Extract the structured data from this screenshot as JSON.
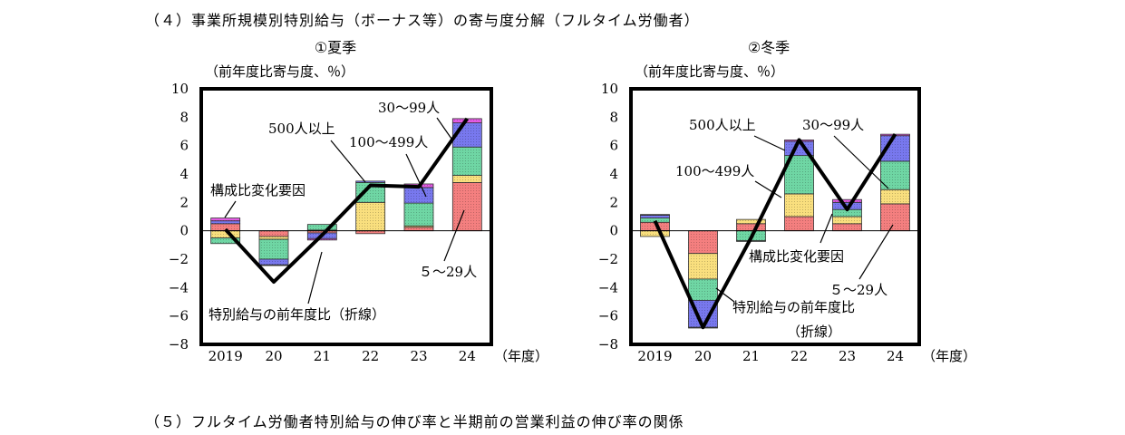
{
  "headings": {
    "section4": "（４）事業所規模別特別給与（ボーナス等）の寄与度分解（フルタイム労働者）",
    "section5": "（５）フルタイム労働者特別給与の伸び率と半期前の営業利益の伸び率の関係"
  },
  "colors": {
    "s5_29": "#f47f7f",
    "s30_99": "#f9df7e",
    "s100_499": "#6fd6a4",
    "s500": "#7878ee",
    "composition": "#e35be3",
    "line": "#000000"
  },
  "chart_data": [
    {
      "type": "bar",
      "stacked": true,
      "title": "①夏季",
      "ylabel": "（前年度比寄与度、％）",
      "xlabel": "（年度）",
      "ylim": [
        -8,
        10
      ],
      "yticks": [
        "−8",
        "−6",
        "−4",
        "−2",
        "0",
        "2",
        "4",
        "6",
        "8",
        "10"
      ],
      "categories": [
        "2019",
        "20",
        "21",
        "22",
        "23",
        "24"
      ],
      "series": [
        {
          "name": "５～29人",
          "key": "s5_29",
          "values": [
            0.5,
            -0.4,
            -0.15,
            -0.2,
            0.25,
            3.4
          ]
        },
        {
          "name": "30～99人",
          "key": "s30_99",
          "values": [
            -0.5,
            -0.2,
            0.05,
            2.0,
            0.1,
            0.5
          ]
        },
        {
          "name": "100～499人",
          "key": "s100_499",
          "values": [
            -0.4,
            -1.4,
            0.4,
            1.4,
            1.6,
            2.0
          ]
        },
        {
          "name": "500人以上",
          "key": "s500",
          "values": [
            0.2,
            -0.4,
            -0.4,
            0.1,
            1.1,
            1.7
          ]
        },
        {
          "name": "構成比変化要因",
          "key": "composition",
          "values": [
            0.2,
            -0.05,
            -0.1,
            0.0,
            0.25,
            0.3
          ]
        }
      ],
      "line": {
        "name": "特別給与の前年度比（折線）",
        "values": [
          0.1,
          -3.6,
          -0.3,
          3.2,
          3.1,
          7.9
        ]
      },
      "annotations": [
        "構成比変化要因",
        "500人以上",
        "30～99人",
        "100～499人",
        "５～29人",
        "特別給与の前年度比（折線）"
      ]
    },
    {
      "type": "bar",
      "stacked": true,
      "title": "②冬季",
      "ylabel": "（前年度比寄与度、％）",
      "xlabel": "（年度）",
      "ylim": [
        -8,
        10
      ],
      "yticks": [
        "−8",
        "−6",
        "−4",
        "−2",
        "0",
        "2",
        "4",
        "6",
        "8",
        "10"
      ],
      "categories": [
        "2019",
        "20",
        "21",
        "22",
        "23",
        "24"
      ],
      "series": [
        {
          "name": "５～29人",
          "key": "s5_29",
          "values": [
            0.6,
            -1.6,
            0.5,
            1.0,
            0.5,
            1.9
          ]
        },
        {
          "name": "30～99人",
          "key": "s30_99",
          "values": [
            -0.4,
            -1.8,
            0.3,
            1.6,
            0.5,
            1.0
          ]
        },
        {
          "name": "100～499人",
          "key": "s100_499",
          "values": [
            0.3,
            -1.5,
            -0.7,
            2.7,
            0.5,
            2.0
          ]
        },
        {
          "name": "500人以上",
          "key": "s500",
          "values": [
            0.2,
            -1.9,
            0.0,
            1.0,
            0.5,
            1.8
          ]
        },
        {
          "name": "構成比変化要因",
          "key": "composition",
          "values": [
            0.05,
            -0.05,
            -0.05,
            0.1,
            0.2,
            0.1
          ]
        }
      ],
      "line": {
        "name": "特別給与の前年度比（折線）",
        "values": [
          0.7,
          -6.8,
          -0.5,
          6.4,
          1.5,
          6.8
        ]
      },
      "annotations": [
        "500人以上",
        "30～99人",
        "100～499人",
        "構成比変化要因",
        "５～29人",
        "特別給与の前年度比",
        "（折線）"
      ]
    }
  ]
}
